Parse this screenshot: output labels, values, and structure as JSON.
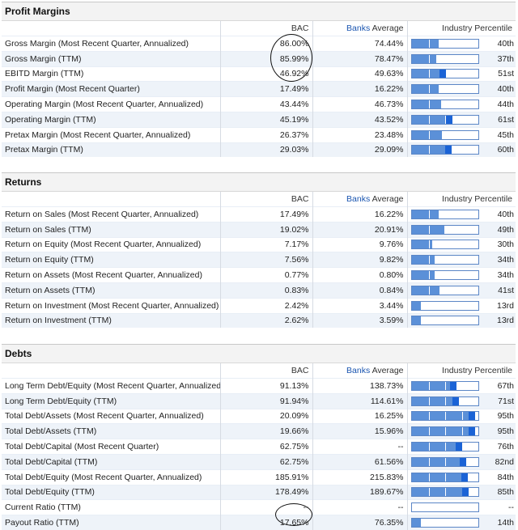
{
  "columns": {
    "bac": "BAC",
    "banks": "Banks",
    "average": "Average",
    "percentile": "Industry Percentile"
  },
  "sections": [
    {
      "title": "Profit Margins",
      "rows": [
        {
          "label": "Gross Margin (Most Recent Quarter, Annualized)",
          "bac": "86.00%",
          "avg": "74.44%",
          "pct": "40th",
          "p": 0.4
        },
        {
          "label": "Gross Margin (TTM)",
          "bac": "85.99%",
          "avg": "78.47%",
          "pct": "37th",
          "p": 0.37
        },
        {
          "label": "EBITD Margin (TTM)",
          "bac": "46.92%",
          "avg": "49.63%",
          "pct": "51st",
          "p": 0.51
        },
        {
          "label": "Profit Margin (Most Recent Quarter)",
          "bac": "17.49%",
          "avg": "16.22%",
          "pct": "40th",
          "p": 0.4
        },
        {
          "label": "Operating Margin (Most Recent Quarter, Annualized)",
          "bac": "43.44%",
          "avg": "46.73%",
          "pct": "44th",
          "p": 0.44
        },
        {
          "label": "Operating Margin (TTM)",
          "bac": "45.19%",
          "avg": "43.52%",
          "pct": "61st",
          "p": 0.61
        },
        {
          "label": "Pretax Margin (Most Recent Quarter, Annualized)",
          "bac": "26.37%",
          "avg": "23.48%",
          "pct": "45th",
          "p": 0.45
        },
        {
          "label": "Pretax Margin (TTM)",
          "bac": "29.03%",
          "avg": "29.09%",
          "pct": "60th",
          "p": 0.6
        }
      ]
    },
    {
      "title": "Returns",
      "rows": [
        {
          "label": "Return on Sales (Most Recent Quarter, Annualized)",
          "bac": "17.49%",
          "avg": "16.22%",
          "pct": "40th",
          "p": 0.4
        },
        {
          "label": "Return on Sales (TTM)",
          "bac": "19.02%",
          "avg": "20.91%",
          "pct": "49th",
          "p": 0.49
        },
        {
          "label": "Return on Equity (Most Recent Quarter, Annualized)",
          "bac": "7.17%",
          "avg": "9.76%",
          "pct": "30th",
          "p": 0.3
        },
        {
          "label": "Return on Equity (TTM)",
          "bac": "7.56%",
          "avg": "9.82%",
          "pct": "34th",
          "p": 0.34
        },
        {
          "label": "Return on Assets (Most Recent Quarter, Annualized)",
          "bac": "0.77%",
          "avg": "0.80%",
          "pct": "34th",
          "p": 0.34
        },
        {
          "label": "Return on Assets (TTM)",
          "bac": "0.83%",
          "avg": "0.84%",
          "pct": "41st",
          "p": 0.41
        },
        {
          "label": "Return on Investment (Most Recent Quarter, Annualized)",
          "bac": "2.42%",
          "avg": "3.44%",
          "pct": "13rd",
          "p": 0.13
        },
        {
          "label": "Return on Investment (TTM)",
          "bac": "2.62%",
          "avg": "3.59%",
          "pct": "13rd",
          "p": 0.13
        }
      ]
    },
    {
      "title": "Debts",
      "rows": [
        {
          "label": "Long Term Debt/Equity (Most Recent Quarter, Annualized)",
          "bac": "91.13%",
          "avg": "138.73%",
          "pct": "67th",
          "p": 0.67
        },
        {
          "label": "Long Term Debt/Equity (TTM)",
          "bac": "91.94%",
          "avg": "114.61%",
          "pct": "71st",
          "p": 0.71
        },
        {
          "label": "Total Debt/Assets (Most Recent Quarter, Annualized)",
          "bac": "20.09%",
          "avg": "16.25%",
          "pct": "95th",
          "p": 0.95
        },
        {
          "label": "Total Debt/Assets (TTM)",
          "bac": "19.66%",
          "avg": "15.96%",
          "pct": "95th",
          "p": 0.95
        },
        {
          "label": "Total Debt/Capital (Most Recent Quarter)",
          "bac": "62.75%",
          "avg": "--",
          "pct": "76th",
          "p": 0.76
        },
        {
          "label": "Total Debt/Capital (TTM)",
          "bac": "62.75%",
          "avg": "61.56%",
          "pct": "82nd",
          "p": 0.82
        },
        {
          "label": "Total Debt/Equity (Most Recent Quarter, Annualized)",
          "bac": "185.91%",
          "avg": "215.83%",
          "pct": "84th",
          "p": 0.84
        },
        {
          "label": "Total Debt/Equity (TTM)",
          "bac": "178.49%",
          "avg": "189.67%",
          "pct": "85th",
          "p": 0.85
        },
        {
          "label": "Current Ratio (TTM)",
          "bac": "--",
          "avg": "--",
          "pct": "--",
          "p": 0
        },
        {
          "label": "Payout Ratio (TTM)",
          "bac": "17.65%",
          "avg": "76.35%",
          "pct": "14th",
          "p": 0.14
        }
      ]
    }
  ]
}
